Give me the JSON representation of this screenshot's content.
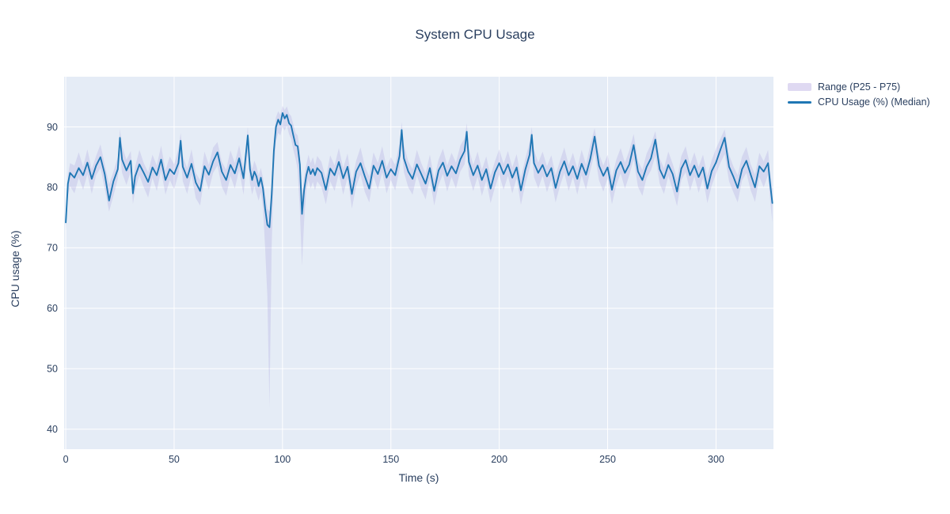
{
  "page": {
    "background": "#ffffff"
  },
  "header": {
    "title": "System CPU Usage"
  },
  "legend": {
    "range_label": "Range (P25 - P75)",
    "median_label": "CPU Usage (%) (Median)"
  },
  "colors": {
    "text": "#2a3f5f",
    "plot_background": "#e5ecf6",
    "gridline": "#ffffff",
    "median_line": "#1f77b4",
    "range_band": "rgba(140,120,210,0.18)"
  },
  "chart_data": {
    "type": "line",
    "title": "System CPU Usage",
    "xlabel": "Time (s)",
    "ylabel": "CPU usage (%)",
    "legend_position": "top-right-outside",
    "grid": true,
    "x_ticks": [
      0,
      50,
      100,
      150,
      200,
      250,
      300
    ],
    "y_ticks": [
      40,
      50,
      60,
      70,
      80,
      90
    ],
    "x_range": [
      -0.75,
      326.5
    ],
    "y_range": [
      36.7,
      98.3
    ],
    "x": [
      0,
      1,
      2,
      4,
      6,
      8,
      10,
      12,
      14,
      16,
      18,
      20,
      22,
      24,
      25,
      26,
      28,
      30,
      31,
      32,
      34,
      36,
      38,
      40,
      42,
      44,
      46,
      48,
      50,
      52,
      53,
      54,
      56,
      58,
      60,
      62,
      64,
      66,
      68,
      70,
      72,
      74,
      76,
      78,
      80,
      82,
      84,
      85,
      86,
      87,
      88,
      89,
      90,
      91,
      92,
      93,
      94,
      95,
      96,
      97,
      98,
      99,
      100,
      101,
      102,
      103,
      104,
      105,
      106,
      107,
      108,
      109,
      110,
      111,
      112,
      113,
      114,
      115,
      116,
      118,
      120,
      122,
      124,
      126,
      128,
      130,
      132,
      134,
      136,
      138,
      140,
      142,
      144,
      146,
      148,
      150,
      152,
      154,
      155,
      156,
      158,
      160,
      162,
      164,
      166,
      168,
      170,
      172,
      174,
      176,
      178,
      180,
      182,
      184,
      185,
      186,
      188,
      190,
      192,
      194,
      196,
      198,
      200,
      202,
      204,
      206,
      208,
      210,
      212,
      214,
      215,
      216,
      218,
      220,
      222,
      224,
      226,
      228,
      230,
      232,
      234,
      236,
      238,
      240,
      242,
      244,
      246,
      248,
      250,
      252,
      254,
      256,
      258,
      260,
      262,
      264,
      266,
      268,
      270,
      272,
      274,
      276,
      278,
      280,
      282,
      284,
      286,
      288,
      290,
      292,
      294,
      296,
      298,
      300,
      302,
      304,
      306,
      308,
      310,
      312,
      314,
      316,
      318,
      320,
      322,
      324,
      325,
      326
    ],
    "series": [
      {
        "name": "CPU Usage (%) (Median)",
        "kind": "line",
        "color": "#1f77b4",
        "values": [
          74.2,
          80.6,
          82.4,
          81.6,
          83.2,
          82.0,
          84.1,
          81.4,
          83.6,
          85.0,
          82.2,
          77.8,
          81.0,
          83.0,
          88.2,
          84.6,
          82.8,
          84.4,
          79.0,
          81.8,
          83.8,
          82.4,
          80.9,
          83.3,
          82.0,
          84.6,
          81.2,
          83.0,
          82.2,
          84.0,
          87.7,
          83.4,
          81.6,
          83.9,
          80.8,
          79.4,
          83.5,
          82.1,
          84.3,
          85.8,
          82.6,
          81.2,
          83.7,
          82.3,
          84.8,
          81.5,
          88.6,
          83.0,
          81.2,
          82.6,
          81.8,
          80.2,
          81.6,
          79.8,
          76.5,
          73.8,
          73.4,
          78.8,
          86.0,
          90.0,
          91.2,
          90.4,
          92.3,
          91.4,
          92.0,
          90.6,
          90.2,
          88.6,
          87.0,
          86.8,
          83.8,
          75.6,
          79.6,
          82.0,
          83.4,
          82.2,
          83.0,
          82.0,
          83.2,
          82.4,
          79.6,
          83.1,
          82.0,
          84.2,
          81.5,
          83.4,
          78.9,
          82.6,
          84.0,
          81.8,
          79.8,
          83.6,
          82.2,
          84.4,
          81.6,
          83.0,
          82.0,
          85.2,
          89.5,
          84.8,
          82.6,
          81.4,
          83.8,
          82.2,
          80.6,
          83.2,
          79.4,
          82.8,
          84.1,
          81.9,
          83.5,
          82.3,
          84.6,
          86.0,
          89.2,
          84.2,
          82.0,
          83.6,
          81.2,
          83.0,
          79.8,
          82.5,
          84.0,
          82.2,
          83.8,
          81.6,
          83.3,
          79.5,
          82.9,
          85.4,
          88.7,
          84.0,
          82.4,
          83.7,
          81.8,
          83.2,
          79.9,
          82.6,
          84.3,
          82.0,
          83.5,
          81.4,
          83.9,
          82.1,
          84.7,
          88.4,
          83.6,
          81.9,
          83.3,
          79.6,
          82.8,
          84.2,
          82.4,
          83.8,
          87.0,
          82.6,
          81.2,
          83.4,
          84.8,
          87.9,
          83.0,
          81.5,
          83.7,
          82.2,
          79.3,
          83.1,
          84.5,
          82.0,
          83.6,
          81.7,
          83.3,
          79.8,
          82.7,
          84.1,
          86.2,
          88.2,
          83.4,
          81.8,
          79.9,
          83.0,
          84.4,
          82.1,
          80.0,
          83.5,
          82.6,
          84.0,
          80.5,
          77.4
        ]
      },
      {
        "name": "Range (P25 - P75)",
        "kind": "band",
        "color": "rgba(140,120,210,0.18)",
        "p25": [
          72.8,
          78.5,
          80.2,
          79.0,
          81.6,
          79.6,
          82.2,
          78.9,
          82.0,
          83.2,
          79.8,
          76.0,
          78.6,
          81.4,
          85.6,
          82.4,
          80.4,
          82.6,
          77.2,
          79.5,
          82.0,
          80.0,
          78.3,
          81.6,
          79.4,
          82.8,
          78.8,
          81.2,
          79.7,
          82.2,
          85.0,
          81.0,
          78.9,
          82.1,
          78.2,
          77.0,
          81.8,
          79.6,
          82.4,
          83.6,
          80.1,
          78.6,
          81.9,
          79.8,
          82.9,
          78.8,
          85.8,
          80.6,
          78.8,
          80.2,
          79.0,
          77.8,
          79.2,
          76.5,
          70.0,
          62.0,
          43.5,
          70.5,
          82.5,
          87.5,
          89.0,
          88.6,
          90.0,
          89.4,
          90.2,
          88.8,
          88.0,
          86.2,
          84.8,
          83.0,
          76.0,
          67.0,
          74.5,
          79.6,
          81.2,
          79.8,
          80.9,
          79.5,
          81.0,
          80.0,
          77.2,
          81.0,
          79.4,
          82.3,
          78.8,
          81.6,
          76.5,
          80.2,
          82.1,
          79.2,
          77.5,
          81.8,
          79.6,
          82.5,
          79.0,
          81.2,
          79.5,
          83.0,
          86.8,
          82.5,
          80.0,
          78.8,
          82.0,
          79.7,
          78.0,
          81.4,
          77.0,
          80.4,
          82.2,
          79.3,
          81.7,
          79.8,
          82.6,
          83.8,
          86.5,
          81.9,
          79.4,
          81.8,
          78.6,
          81.1,
          77.4,
          80.0,
          82.1,
          79.6,
          81.9,
          79.0,
          81.5,
          77.1,
          80.5,
          83.2,
          86.0,
          81.7,
          79.8,
          81.9,
          79.2,
          81.3,
          77.5,
          80.2,
          82.4,
          79.4,
          81.7,
          78.8,
          82.0,
          79.6,
          82.7,
          85.7,
          81.2,
          79.3,
          81.5,
          77.2,
          80.4,
          82.3,
          79.8,
          82.0,
          84.6,
          80.1,
          78.6,
          81.6,
          82.8,
          85.2,
          80.6,
          78.9,
          81.9,
          79.6,
          76.9,
          81.2,
          82.5,
          79.4,
          81.8,
          79.1,
          81.5,
          77.4,
          80.3,
          82.2,
          84.0,
          85.5,
          81.0,
          79.2,
          77.5,
          81.1,
          82.4,
          79.5,
          77.6,
          81.7,
          80.0,
          82.1,
          77.8,
          74.2
        ],
        "p75": [
          76.0,
          82.0,
          84.0,
          83.6,
          85.8,
          83.4,
          86.3,
          83.0,
          85.2,
          87.1,
          83.8,
          80.5,
          82.6,
          85.0,
          89.6,
          86.8,
          84.6,
          86.0,
          81.0,
          83.4,
          86.2,
          84.0,
          82.5,
          85.4,
          83.6,
          86.9,
          82.8,
          85.1,
          83.8,
          86.4,
          89.0,
          85.2,
          83.2,
          86.3,
          82.4,
          81.2,
          85.9,
          83.7,
          86.6,
          87.5,
          84.2,
          82.9,
          86.1,
          84.0,
          87.0,
          83.1,
          90.0,
          84.6,
          83.0,
          84.4,
          83.5,
          82.0,
          83.2,
          81.6,
          79.0,
          76.5,
          76.0,
          81.0,
          88.0,
          91.6,
          92.6,
          92.0,
          93.5,
          92.8,
          93.4,
          92.2,
          91.8,
          90.4,
          89.0,
          88.6,
          86.0,
          78.5,
          81.8,
          83.8,
          85.4,
          84.0,
          85.0,
          83.6,
          85.2,
          84.2,
          81.5,
          85.3,
          83.6,
          86.5,
          83.2,
          85.6,
          81.0,
          84.4,
          86.6,
          83.5,
          81.8,
          85.8,
          84.0,
          86.8,
          83.3,
          85.0,
          83.7,
          87.3,
          90.8,
          87.0,
          84.3,
          83.0,
          86.2,
          84.0,
          82.3,
          85.4,
          81.4,
          84.6,
          86.4,
          83.6,
          85.7,
          84.1,
          86.9,
          88.1,
          90.6,
          86.4,
          83.7,
          85.9,
          82.9,
          85.1,
          81.9,
          84.3,
          86.3,
          83.9,
          86.0,
          83.3,
          85.5,
          81.6,
          84.7,
          87.5,
          90.0,
          86.2,
          84.1,
          85.9,
          83.5,
          85.3,
          82.0,
          84.4,
          86.6,
          83.7,
          85.7,
          83.1,
          86.2,
          83.8,
          87.0,
          89.8,
          85.6,
          83.6,
          85.4,
          81.6,
          84.6,
          86.5,
          84.1,
          86.1,
          88.8,
          84.4,
          82.9,
          85.6,
          87.1,
          89.3,
          84.8,
          83.2,
          85.9,
          83.9,
          81.4,
          85.2,
          86.8,
          83.7,
          85.8,
          83.4,
          85.4,
          81.9,
          84.5,
          86.4,
          88.0,
          89.6,
          85.4,
          83.5,
          82.0,
          85.1,
          86.7,
          83.8,
          82.1,
          85.7,
          84.3,
          86.2,
          82.3,
          79.6
        ]
      }
    ]
  }
}
